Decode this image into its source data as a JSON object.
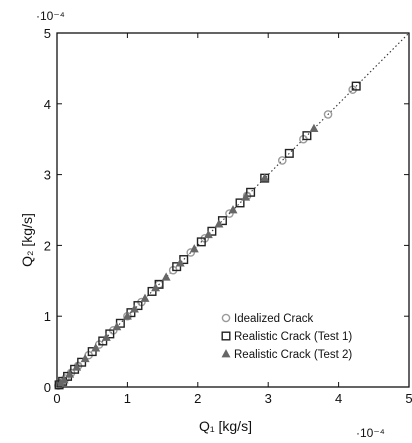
{
  "chart_data": {
    "type": "scatter",
    "title": "",
    "xlabel": "Q₁ [kg/s]",
    "ylabel": "Q₂ [kg/s]",
    "x_exponent": "·10⁻⁴",
    "y_exponent": "·10⁻⁴",
    "xlim": [
      0,
      5
    ],
    "ylim": [
      0,
      5
    ],
    "x_ticks": [
      "0",
      "1",
      "2",
      "3",
      "4",
      "5"
    ],
    "y_ticks": [
      "0",
      "1",
      "2",
      "3",
      "4",
      "5"
    ],
    "grid": false,
    "legend_position": "bottom-right",
    "reference_line": {
      "style": "dotted",
      "from": [
        0,
        0
      ],
      "to": [
        5,
        5
      ]
    },
    "series": [
      {
        "name": "Idealized Crack",
        "marker": "circle",
        "color": "#9a9a9a",
        "x": [
          0.02,
          0.06,
          0.12,
          0.2,
          0.3,
          0.45,
          0.6,
          0.8,
          1.0,
          1.2,
          1.45,
          1.65,
          1.9,
          2.1,
          2.45,
          2.7,
          3.2,
          3.5,
          3.85,
          4.2
        ],
        "y": [
          0.02,
          0.06,
          0.12,
          0.2,
          0.3,
          0.45,
          0.6,
          0.8,
          1.0,
          1.2,
          1.45,
          1.65,
          1.9,
          2.1,
          2.45,
          2.7,
          3.2,
          3.5,
          3.85,
          4.2
        ]
      },
      {
        "name": "Realistic Crack (Test 1)",
        "marker": "square",
        "color": "#222222",
        "x": [
          0.03,
          0.08,
          0.15,
          0.25,
          0.35,
          0.5,
          0.65,
          0.75,
          0.9,
          1.05,
          1.15,
          1.35,
          1.45,
          1.7,
          1.8,
          2.05,
          2.2,
          2.35,
          2.6,
          2.75,
          2.95,
          3.3,
          3.55,
          4.25
        ],
        "y": [
          0.03,
          0.08,
          0.15,
          0.25,
          0.35,
          0.5,
          0.65,
          0.75,
          0.9,
          1.05,
          1.15,
          1.35,
          1.45,
          1.7,
          1.8,
          2.05,
          2.2,
          2.35,
          2.6,
          2.75,
          2.95,
          3.3,
          3.55,
          4.25
        ]
      },
      {
        "name": "Realistic Crack (Test 2)",
        "marker": "triangle",
        "color": "#666666",
        "x": [
          0.05,
          0.1,
          0.18,
          0.28,
          0.4,
          0.55,
          0.7,
          0.85,
          1.0,
          1.1,
          1.25,
          1.4,
          1.55,
          1.75,
          1.95,
          2.15,
          2.3,
          2.5,
          2.68,
          2.95,
          3.65
        ],
        "y": [
          0.05,
          0.1,
          0.18,
          0.28,
          0.4,
          0.55,
          0.7,
          0.85,
          1.0,
          1.1,
          1.25,
          1.4,
          1.55,
          1.75,
          1.95,
          2.15,
          2.3,
          2.5,
          2.68,
          2.95,
          3.65
        ]
      }
    ]
  }
}
